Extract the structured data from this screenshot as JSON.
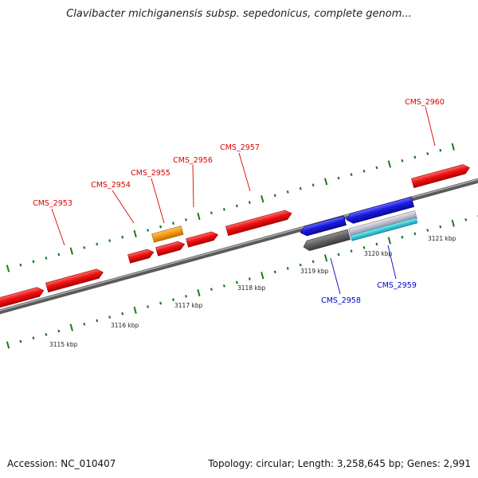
{
  "title": "Clavibacter michiganensis subsp. sepedonicus, complete genom...",
  "footer": {
    "accession": "Accession: NC_010407",
    "summary": "Topology: circular; Length: 3,258,645 bp; Genes: 2,991"
  },
  "colors": {
    "forward_gene": "#ee1111",
    "reverse_gene": "#1a1adf",
    "orange_feature": "#f09a10",
    "gray_feature": "#606060",
    "cyan_feature": "#20c8d8",
    "backbone": "#888888",
    "tick": "#1f7a1f",
    "forward_label": "#dd0000",
    "reverse_label": "#0000cc"
  },
  "tick_labels": [
    "3115 kbp",
    "3116 kbp",
    "3117 kbp",
    "3118 kbp",
    "3119 kbp",
    "3120 kbp",
    "3121 kbp"
  ],
  "forward_labels": [
    "CMS_2953",
    "CMS_2954",
    "CMS_2955",
    "CMS_2956",
    "CMS_2957",
    "CMS_2960"
  ],
  "reverse_labels": [
    "CMS_2958",
    "CMS_2959"
  ]
}
